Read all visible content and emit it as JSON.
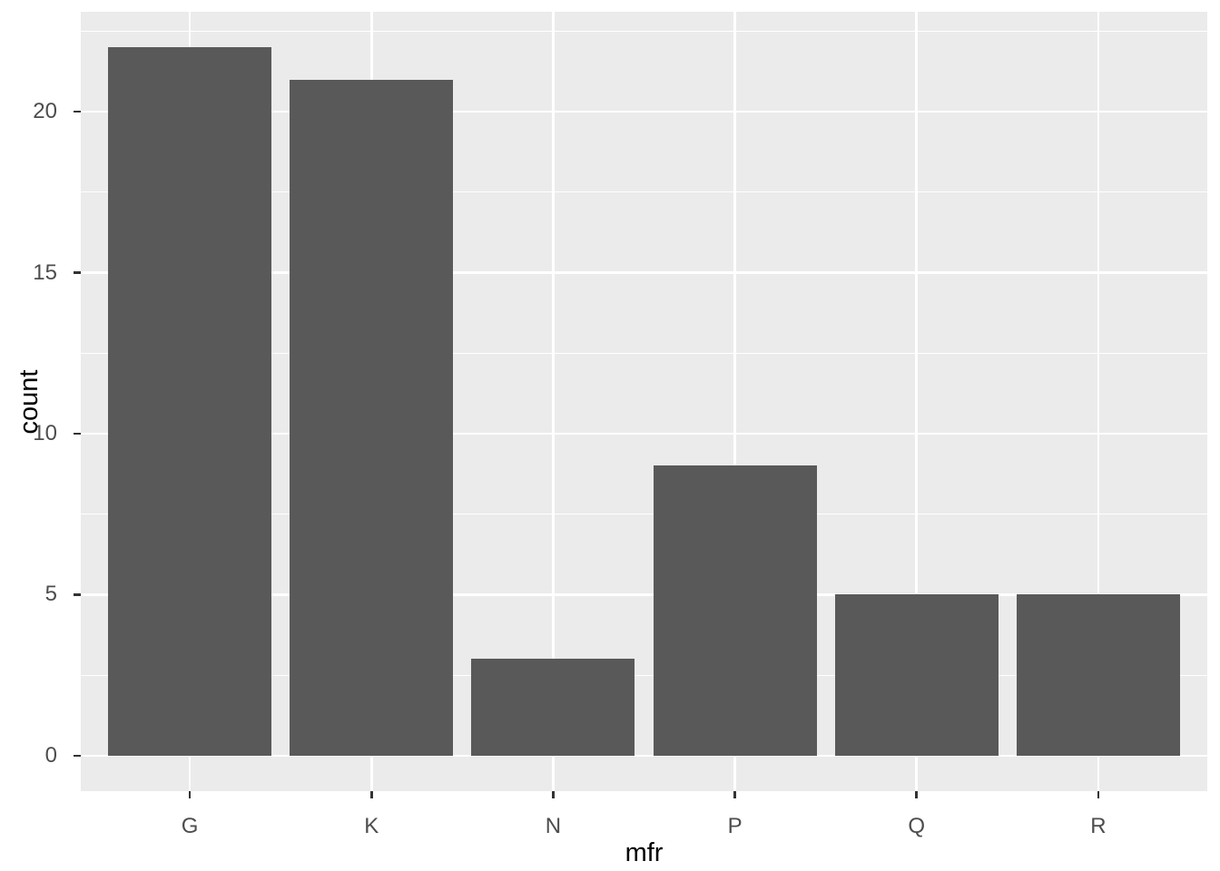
{
  "chart_data": {
    "type": "bar",
    "categories": [
      "G",
      "K",
      "N",
      "P",
      "Q",
      "R"
    ],
    "values": [
      22,
      21,
      3,
      9,
      5,
      5
    ],
    "title": "",
    "xlabel": "mfr",
    "ylabel": "count",
    "yticks": [
      0,
      5,
      10,
      15,
      20
    ],
    "y_minor_ticks": [
      2.5,
      7.5,
      12.5,
      17.5,
      22.5
    ],
    "ylim": [
      0,
      22
    ],
    "grid": "major and minor horizontal white gridlines, vertical white gridlines at category centers",
    "legend_position": "none",
    "style": {
      "bar_fill": "#595959",
      "panel_background": "#EBEBEB",
      "gridline_color": "#FFFFFF",
      "tick_mark_color": "#333333",
      "tick_label_color": "#4D4D4D",
      "axis_title_color": "#000000",
      "figure_background": "#FFFFFF"
    }
  }
}
